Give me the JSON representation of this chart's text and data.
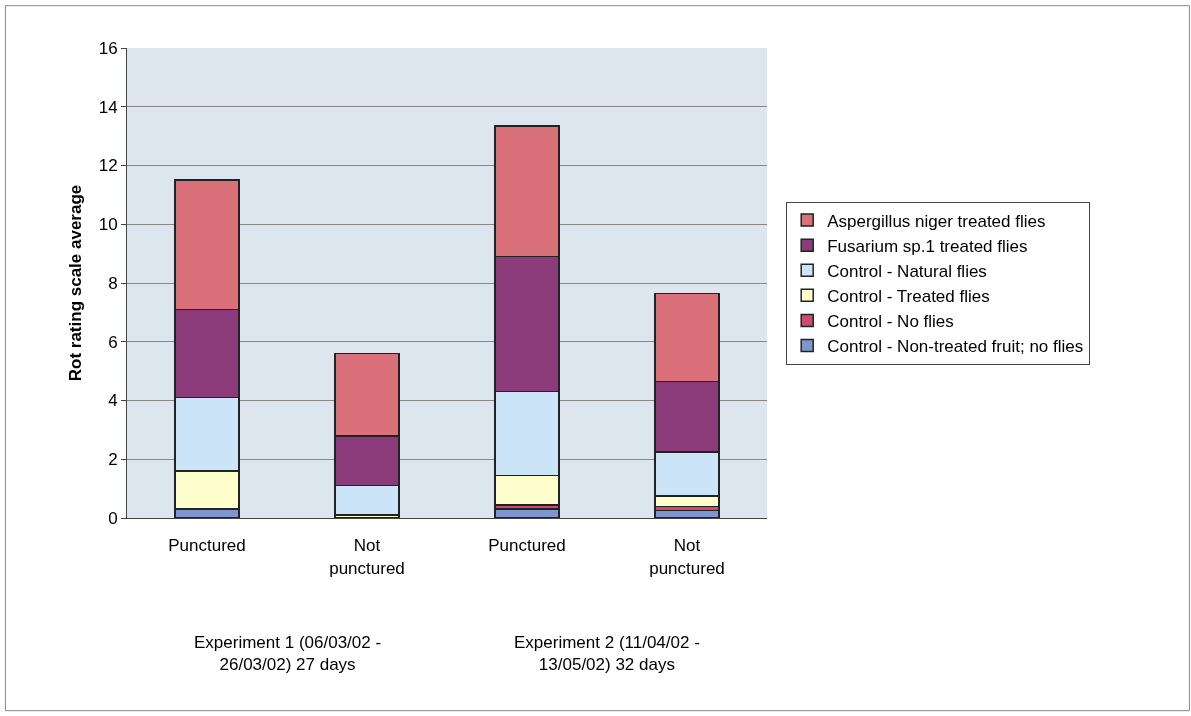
{
  "chart_data": {
    "type": "bar",
    "stacked": true,
    "ylabel": "Rot rating scale average",
    "categories": [
      "Punctured",
      "Not punctured",
      "Punctured",
      "Not punctured"
    ],
    "annotations": [
      "Experiment 1 (06/03/02 - 26/03/02) 27 days",
      "Experiment 2 (11/04/02 - 13/05/02) 32 days"
    ],
    "series": [
      {
        "name": "Control - Non-treated fruit; no flies",
        "color": "#7f95d0",
        "values": [
          0.3,
          0,
          0.3,
          0.25
        ]
      },
      {
        "name": "Control - No flies",
        "color": "#cc4b6e",
        "values": [
          0,
          0,
          0.15,
          0.15
        ]
      },
      {
        "name": "Control - Treated flies",
        "color": "#fefecc",
        "values": [
          1.3,
          0.1,
          1.0,
          0.35
        ]
      },
      {
        "name": "Control - Natural flies",
        "color": "#cce4f7",
        "values": [
          2.5,
          1.0,
          2.85,
          1.5
        ]
      },
      {
        "name": "Fusarium sp.1 treated flies",
        "color": "#8b3a7a",
        "values": [
          3.0,
          1.7,
          4.6,
          2.4
        ]
      },
      {
        "name": "Aspergillus niger treated flies",
        "color": "#d9707a",
        "values": [
          4.4,
          2.8,
          4.45,
          3.0
        ]
      }
    ],
    "ylim": [
      0,
      16
    ],
    "yticks": [
      0,
      2,
      4,
      6,
      8,
      10,
      12,
      14,
      16
    ],
    "grid": "y",
    "legend": "right"
  }
}
